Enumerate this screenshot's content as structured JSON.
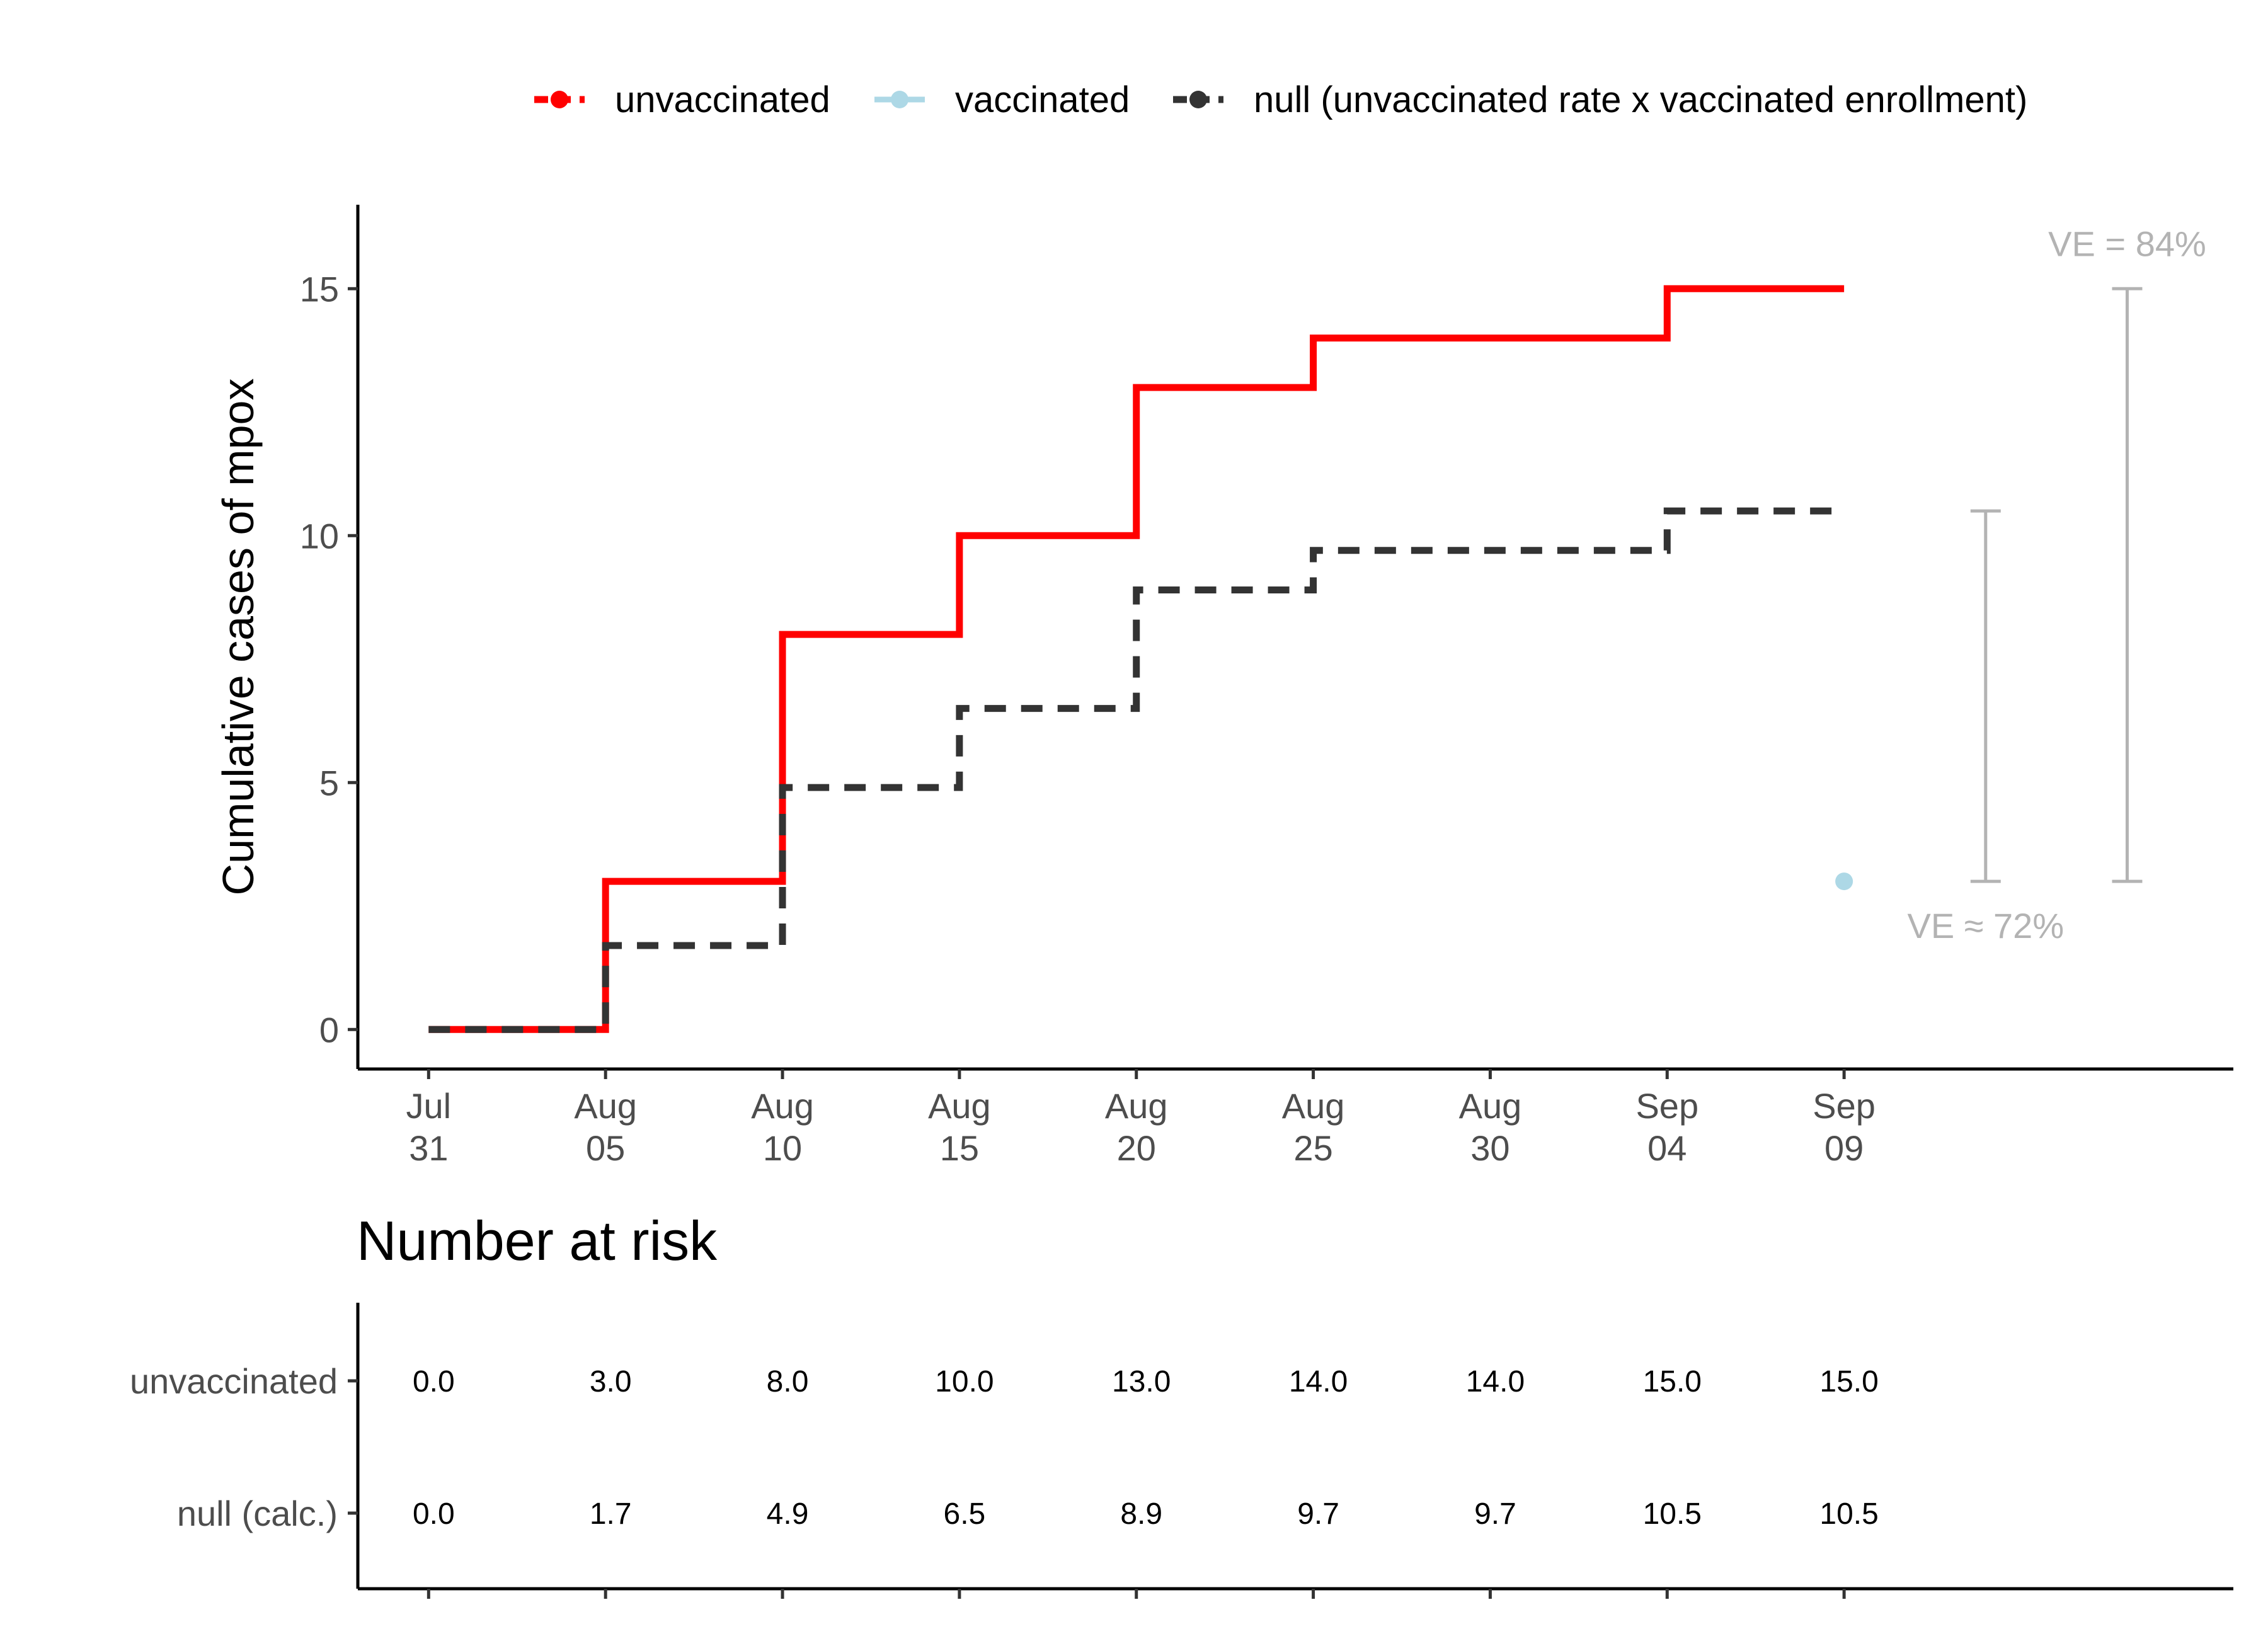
{
  "colors": {
    "unvaccinated": "#ff0000",
    "vaccinated": "#add8e6",
    "null": "#333333",
    "annotation": "#b3b3b3",
    "axis": "#000000",
    "tick_text": "#4d4d4d"
  },
  "legend": {
    "position": "top",
    "items": [
      {
        "key": "unvaccinated",
        "label": "unvaccinated"
      },
      {
        "key": "vaccinated",
        "label": "vaccinated"
      },
      {
        "key": "null",
        "label": "null (unvaccinated rate x vaccinated enrollment)"
      }
    ]
  },
  "chart_data": {
    "type": "line",
    "step": true,
    "ylabel": "Cumulative cases of mpox",
    "xlabel": "",
    "ylim": [
      -0.8,
      16.7
    ],
    "yticks": [
      0,
      5,
      10,
      15
    ],
    "x_ticks": [
      {
        "date": "2022-07-31",
        "line1": "Jul",
        "line2": "31"
      },
      {
        "date": "2022-08-05",
        "line1": "Aug",
        "line2": "05"
      },
      {
        "date": "2022-08-10",
        "line1": "Aug",
        "line2": "10"
      },
      {
        "date": "2022-08-15",
        "line1": "Aug",
        "line2": "15"
      },
      {
        "date": "2022-08-20",
        "line1": "Aug",
        "line2": "20"
      },
      {
        "date": "2022-08-25",
        "line1": "Aug",
        "line2": "25"
      },
      {
        "date": "2022-08-30",
        "line1": "Aug",
        "line2": "30"
      },
      {
        "date": "2022-09-04",
        "line1": "Sep",
        "line2": "04"
      },
      {
        "date": "2022-09-09",
        "line1": "Sep",
        "line2": "09"
      }
    ],
    "xlim": [
      "2022-07-29",
      "2022-09-20"
    ],
    "grid": false,
    "series": [
      {
        "name": "unvaccinated",
        "linestyle": "solid",
        "x": [
          "2022-07-31",
          "2022-08-05",
          "2022-08-10",
          "2022-08-15",
          "2022-08-20",
          "2022-08-25",
          "2022-08-30",
          "2022-09-04",
          "2022-09-09"
        ],
        "y": [
          0,
          3,
          8,
          10,
          13,
          14,
          14,
          15,
          15
        ]
      },
      {
        "name": "null (unvaccinated rate x vaccinated enrollment)",
        "linestyle": "dashed",
        "x": [
          "2022-07-31",
          "2022-08-05",
          "2022-08-10",
          "2022-08-15",
          "2022-08-20",
          "2022-08-25",
          "2022-08-30",
          "2022-09-04",
          "2022-09-09"
        ],
        "y": [
          0,
          1.7,
          4.9,
          6.5,
          8.9,
          9.7,
          9.7,
          10.5,
          10.5
        ]
      },
      {
        "name": "vaccinated",
        "marker": "point",
        "x": [
          "2022-09-09"
        ],
        "y": [
          3
        ]
      }
    ],
    "annotations": [
      {
        "label": "VE ≈ 72%",
        "x": "2022-09-13",
        "y_from": 3,
        "y_to": 10.5
      },
      {
        "label": "VE = 84%",
        "x": "2022-09-17",
        "y_from": 3,
        "y_to": 15
      }
    ]
  },
  "risk_table": {
    "title": "Number at risk",
    "rows": [
      {
        "label": "unvaccinated",
        "values": [
          "0.0",
          "3.0",
          "8.0",
          "10.0",
          "13.0",
          "14.0",
          "14.0",
          "15.0",
          "15.0"
        ]
      },
      {
        "label": "null (calc.)",
        "values": [
          "0.0",
          "1.7",
          "4.9",
          "6.5",
          "8.9",
          "9.7",
          "9.7",
          "10.5",
          "10.5"
        ]
      }
    ]
  }
}
